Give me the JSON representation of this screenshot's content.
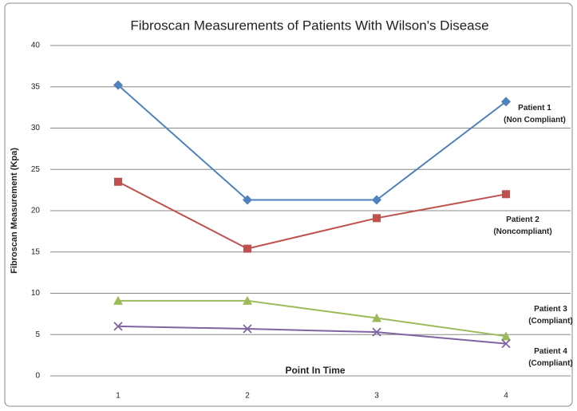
{
  "chart_data": {
    "type": "line",
    "title": "Fibroscan Measurements of Patients With Wilson's  Disease",
    "x_label": "Point In Time",
    "y_label": "Fibroscan Measurement (Kpa)",
    "categories": [
      "1",
      "2",
      "3",
      "4"
    ],
    "ylim": [
      0,
      40
    ],
    "yticks": [
      0,
      5,
      10,
      15,
      20,
      25,
      30,
      35,
      40
    ],
    "grid": true,
    "series": [
      {
        "name": "Patient 1\n(Non Compliant)",
        "color": "#4f81bd",
        "marker": "diamond",
        "values": [
          35.2,
          21.3,
          21.3,
          33.2
        ]
      },
      {
        "name": "Patient 2\n(Noncompliant)",
        "color": "#c0504d",
        "marker": "square",
        "values": [
          23.5,
          15.4,
          19.1,
          22.0
        ]
      },
      {
        "name": "Patient 3\n(Compliant)",
        "color": "#9bbb59",
        "marker": "triangle",
        "values": [
          9.1,
          9.1,
          7.0,
          4.8
        ]
      },
      {
        "name": "Patient 4\n(Compliant)",
        "color": "#8064a2",
        "marker": "x",
        "values": [
          6.0,
          5.7,
          5.3,
          3.9
        ]
      }
    ]
  }
}
